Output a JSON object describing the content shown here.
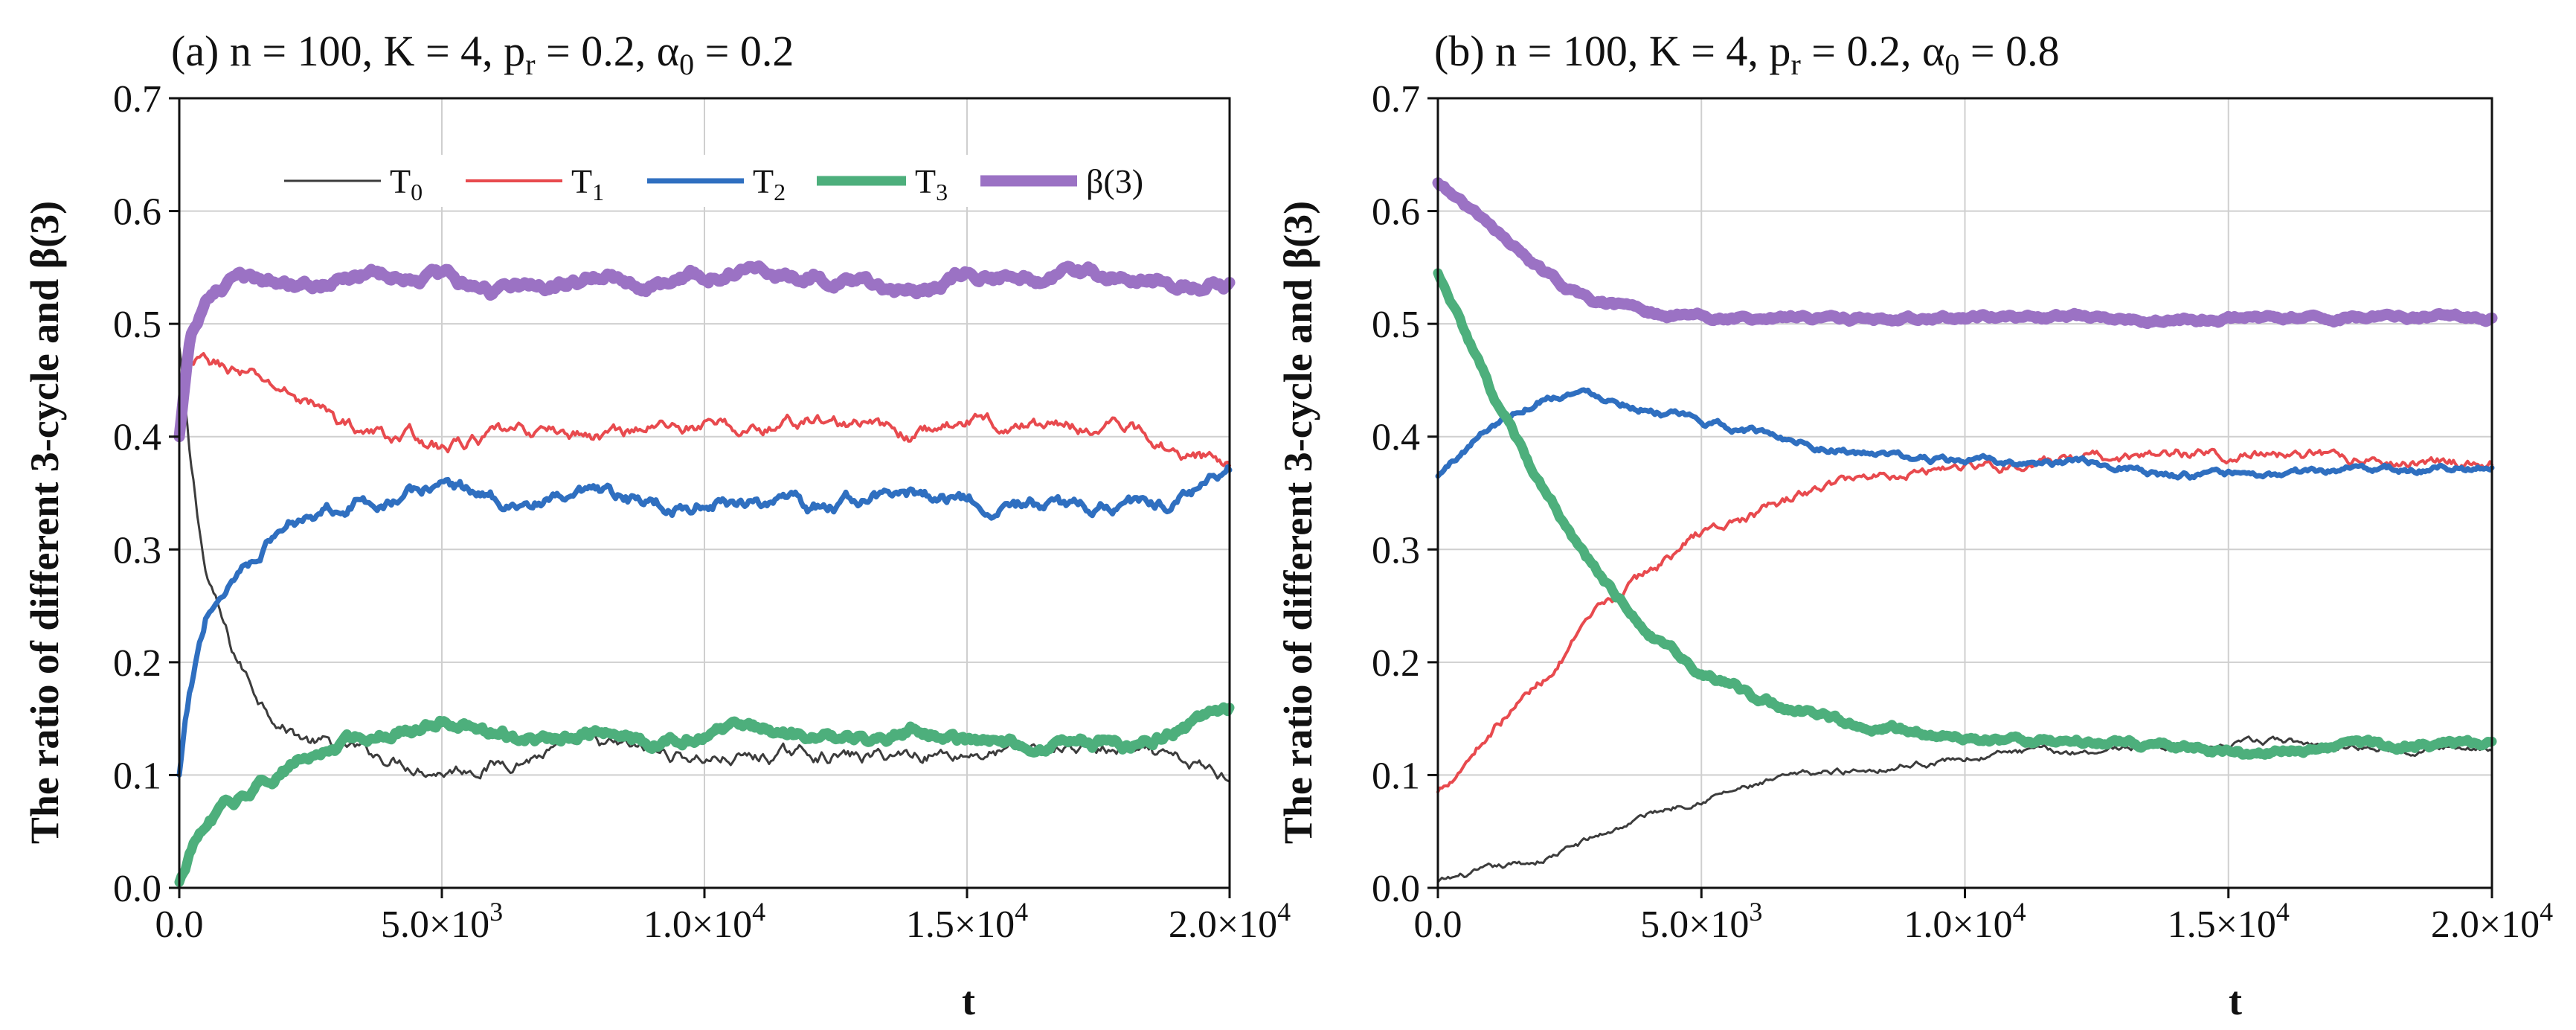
{
  "chart_data": [
    {
      "type": "line",
      "panel_label": "(a)",
      "title": "n = 100, K = 4, p_r = 0.2, α_0 = 0.2",
      "title_parts": {
        "lead": "(a)  n = 100, K = 4, p",
        "p_sub": "r",
        "mid": " = 0.2, α",
        "a_sub": "0",
        "tail": " = 0.2"
      },
      "xlabel": "t",
      "ylabel": "The ratio of different 3-cycle and β(3)",
      "xlim": [
        0,
        20000
      ],
      "ylim": [
        0,
        0.7
      ],
      "grid": true,
      "legend_position": "top",
      "x_ticks": [
        0,
        5000,
        10000,
        15000,
        20000
      ],
      "x_tick_labels": [
        {
          "m": "0.0",
          "e": ""
        },
        {
          "m": "5.0×10",
          "e": "3"
        },
        {
          "m": "1.0×10",
          "e": "4"
        },
        {
          "m": "1.5×10",
          "e": "4"
        },
        {
          "m": "2.0×10",
          "e": "4"
        }
      ],
      "y_ticks": [
        0,
        0.1,
        0.2,
        0.3,
        0.4,
        0.5,
        0.6,
        0.7
      ],
      "y_tick_labels": [
        "0.0",
        "0.1",
        "0.2",
        "0.3",
        "0.4",
        "0.5",
        "0.6",
        "0.7"
      ],
      "series": [
        {
          "name": "T_0",
          "label_main": "T",
          "label_sub": "0",
          "color": "#3c3c3c",
          "width": 3,
          "noise": 0.004,
          "x": [
            0,
            200,
            500,
            1000,
            1500,
            2000,
            2500,
            3000,
            3500,
            4000,
            4500,
            5000,
            6000,
            7000,
            8000,
            9000,
            10000,
            11000,
            12000,
            13000,
            14000,
            15000,
            16000,
            17000,
            18000,
            19000,
            20000
          ],
          "values": [
            0.48,
            0.38,
            0.28,
            0.21,
            0.17,
            0.145,
            0.13,
            0.125,
            0.12,
            0.115,
            0.11,
            0.105,
            0.11,
            0.12,
            0.125,
            0.12,
            0.115,
            0.115,
            0.12,
            0.115,
            0.12,
            0.12,
            0.12,
            0.125,
            0.12,
            0.11,
            0.1
          ]
        },
        {
          "name": "T_1",
          "label_main": "T",
          "label_sub": "1",
          "color": "#e84a4e",
          "width": 4,
          "noise": 0.004,
          "x": [
            0,
            200,
            500,
            1000,
            1500,
            2000,
            2500,
            3000,
            3500,
            4000,
            4500,
            5000,
            6000,
            7000,
            8000,
            9000,
            10000,
            11000,
            12000,
            13000,
            14000,
            15000,
            16000,
            17000,
            18000,
            19000,
            20000
          ],
          "values": [
            0.41,
            0.46,
            0.465,
            0.46,
            0.45,
            0.44,
            0.43,
            0.415,
            0.405,
            0.4,
            0.4,
            0.39,
            0.4,
            0.405,
            0.4,
            0.41,
            0.41,
            0.405,
            0.415,
            0.41,
            0.4,
            0.415,
            0.41,
            0.41,
            0.41,
            0.39,
            0.375
          ]
        },
        {
          "name": "T_2",
          "label_main": "T",
          "label_sub": "2",
          "color": "#2f6fc0",
          "width": 7,
          "noise": 0.004,
          "x": [
            0,
            200,
            500,
            1000,
            1500,
            2000,
            2500,
            3000,
            3500,
            4000,
            4500,
            5000,
            6000,
            7000,
            8000,
            9000,
            10000,
            11000,
            12000,
            13000,
            14000,
            15000,
            16000,
            17000,
            18000,
            19000,
            20000
          ],
          "values": [
            0.1,
            0.17,
            0.24,
            0.275,
            0.3,
            0.32,
            0.335,
            0.34,
            0.345,
            0.345,
            0.35,
            0.36,
            0.345,
            0.34,
            0.345,
            0.34,
            0.34,
            0.345,
            0.335,
            0.345,
            0.35,
            0.345,
            0.34,
            0.335,
            0.34,
            0.345,
            0.37
          ]
        },
        {
          "name": "T_3",
          "label_main": "T",
          "label_sub": "3",
          "color": "#4daf7c",
          "width": 13,
          "noise": 0.003,
          "x": [
            0,
            200,
            500,
            1000,
            1500,
            2000,
            2500,
            3000,
            3500,
            4000,
            4500,
            5000,
            6000,
            7000,
            8000,
            9000,
            10000,
            11000,
            12000,
            13000,
            14000,
            15000,
            16000,
            17000,
            18000,
            19000,
            20000
          ],
          "values": [
            0.005,
            0.03,
            0.055,
            0.075,
            0.09,
            0.105,
            0.115,
            0.125,
            0.135,
            0.14,
            0.14,
            0.15,
            0.135,
            0.13,
            0.14,
            0.125,
            0.135,
            0.14,
            0.135,
            0.13,
            0.14,
            0.13,
            0.125,
            0.13,
            0.125,
            0.14,
            0.155
          ]
        },
        {
          "name": "β(3)",
          "label_main": "β(3)",
          "label_sub": "",
          "color": "#9b72c4",
          "width": 15,
          "noise": 0.003,
          "x": [
            0,
            200,
            500,
            1000,
            1500,
            2000,
            2500,
            3000,
            3500,
            4000,
            4500,
            5000,
            6000,
            7000,
            8000,
            9000,
            10000,
            11000,
            12000,
            13000,
            14000,
            15000,
            16000,
            17000,
            18000,
            19000,
            20000
          ],
          "values": [
            0.4,
            0.49,
            0.52,
            0.535,
            0.538,
            0.54,
            0.538,
            0.54,
            0.542,
            0.545,
            0.545,
            0.54,
            0.53,
            0.535,
            0.54,
            0.535,
            0.545,
            0.545,
            0.54,
            0.535,
            0.53,
            0.545,
            0.54,
            0.545,
            0.54,
            0.535,
            0.535
          ]
        }
      ]
    },
    {
      "type": "line",
      "panel_label": "(b)",
      "title": "n = 100, K = 4, p_r = 0.2, α_0 = 0.8",
      "title_parts": {
        "lead": "(b)  n = 100, K = 4, p",
        "p_sub": "r",
        "mid": " = 0.2, α",
        "a_sub": "0",
        "tail": " = 0.8"
      },
      "xlabel": "t",
      "ylabel": "The ratio of different 3-cycle and β(3)",
      "xlim": [
        0,
        20000
      ],
      "ylim": [
        0,
        0.7
      ],
      "grid": true,
      "x_ticks": [
        0,
        5000,
        10000,
        15000,
        20000
      ],
      "x_tick_labels": [
        {
          "m": "0.0",
          "e": ""
        },
        {
          "m": "5.0×10",
          "e": "3"
        },
        {
          "m": "1.0×10",
          "e": "4"
        },
        {
          "m": "1.5×10",
          "e": "4"
        },
        {
          "m": "2.0×10",
          "e": "4"
        }
      ],
      "y_ticks": [
        0,
        0.1,
        0.2,
        0.3,
        0.4,
        0.5,
        0.6,
        0.7
      ],
      "y_tick_labels": [
        "0.0",
        "0.1",
        "0.2",
        "0.3",
        "0.4",
        "0.5",
        "0.6",
        "0.7"
      ],
      "series": [
        {
          "name": "T_0",
          "color": "#3c3c3c",
          "width": 3,
          "noise": 0.002,
          "x": [
            0,
            1000,
            2000,
            3000,
            4000,
            5000,
            6000,
            7000,
            8000,
            9000,
            10000,
            11000,
            12000,
            13000,
            14000,
            15000,
            16000,
            17000,
            18000,
            19000,
            20000
          ],
          "values": [
            0.005,
            0.015,
            0.025,
            0.045,
            0.065,
            0.08,
            0.09,
            0.1,
            0.105,
            0.11,
            0.115,
            0.12,
            0.12,
            0.125,
            0.125,
            0.125,
            0.13,
            0.125,
            0.125,
            0.125,
            0.125
          ]
        },
        {
          "name": "T_1",
          "color": "#e84a4e",
          "width": 4,
          "noise": 0.003,
          "x": [
            0,
            1000,
            2000,
            3000,
            4000,
            5000,
            6000,
            7000,
            8000,
            9000,
            10000,
            11000,
            12000,
            13000,
            14000,
            15000,
            16000,
            17000,
            18000,
            19000,
            20000
          ],
          "values": [
            0.085,
            0.14,
            0.185,
            0.24,
            0.28,
            0.315,
            0.33,
            0.35,
            0.365,
            0.37,
            0.375,
            0.375,
            0.378,
            0.38,
            0.385,
            0.385,
            0.385,
            0.38,
            0.378,
            0.378,
            0.378
          ]
        },
        {
          "name": "T_2",
          "color": "#2f6fc0",
          "width": 7,
          "noise": 0.002,
          "x": [
            0,
            1000,
            2000,
            2500,
            3000,
            4000,
            5000,
            6000,
            7000,
            8000,
            9000,
            10000,
            11000,
            12000,
            13000,
            14000,
            15000,
            16000,
            17000,
            18000,
            19000,
            20000
          ],
          "values": [
            0.365,
            0.41,
            0.435,
            0.44,
            0.438,
            0.425,
            0.412,
            0.405,
            0.395,
            0.385,
            0.38,
            0.378,
            0.376,
            0.376,
            0.375,
            0.365,
            0.365,
            0.365,
            0.37,
            0.372,
            0.372,
            0.372
          ]
        },
        {
          "name": "T_3",
          "color": "#4daf7c",
          "width": 13,
          "noise": 0.002,
          "x": [
            0,
            1000,
            2000,
            3000,
            4000,
            5000,
            6000,
            7000,
            8000,
            9000,
            10000,
            11000,
            12000,
            13000,
            14000,
            15000,
            16000,
            17000,
            18000,
            19000,
            20000
          ],
          "values": [
            0.545,
            0.44,
            0.35,
            0.28,
            0.225,
            0.19,
            0.17,
            0.155,
            0.145,
            0.14,
            0.135,
            0.13,
            0.13,
            0.13,
            0.125,
            0.12,
            0.12,
            0.125,
            0.125,
            0.125,
            0.125
          ]
        },
        {
          "name": "β(3)",
          "color": "#9b72c4",
          "width": 15,
          "noise": 0.0015,
          "x": [
            0,
            500,
            1000,
            1500,
            2000,
            2500,
            3000,
            3500,
            4000,
            5000,
            6000,
            7000,
            8000,
            9000,
            10000,
            11000,
            12000,
            13000,
            14000,
            15000,
            16000,
            17000,
            18000,
            19000,
            20000
          ],
          "values": [
            0.625,
            0.605,
            0.585,
            0.565,
            0.545,
            0.53,
            0.52,
            0.515,
            0.51,
            0.505,
            0.505,
            0.505,
            0.505,
            0.505,
            0.505,
            0.505,
            0.505,
            0.505,
            0.505,
            0.505,
            0.505,
            0.505,
            0.505,
            0.505,
            0.505
          ]
        }
      ]
    }
  ]
}
